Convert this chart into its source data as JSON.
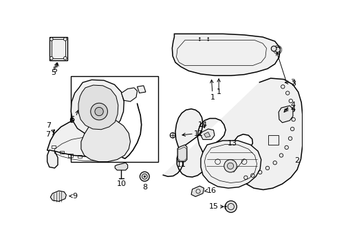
{
  "bg_color": "#ffffff",
  "line_color": "#000000",
  "fig_width": 4.9,
  "fig_height": 3.6,
  "dpi": 100,
  "font_size": 8.0
}
